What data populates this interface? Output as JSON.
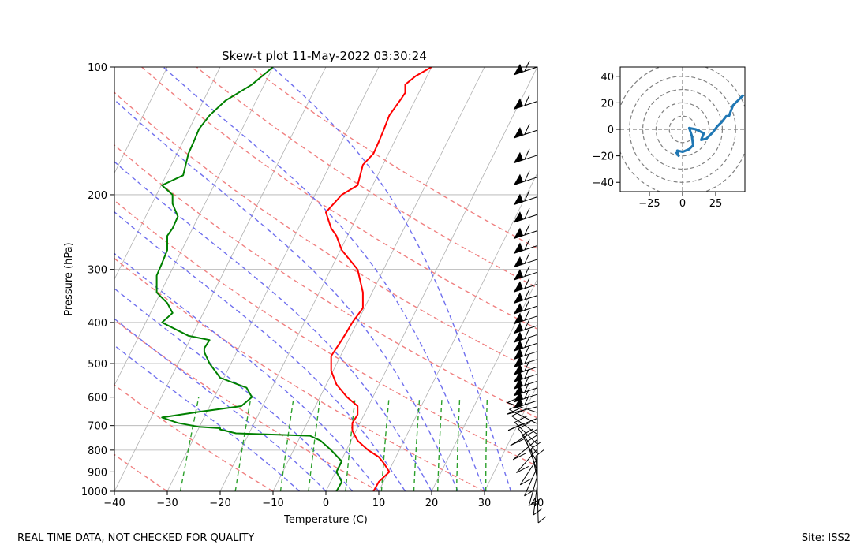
{
  "chart_data": [
    {
      "type": "skew-t",
      "title": "Skew-t plot 11-May-2022 03:30:24",
      "xlabel": "Temperature (C)",
      "ylabel": "Pressure (hPa)",
      "xlim": [
        -40,
        40
      ],
      "ylim": [
        1000,
        100
      ],
      "log_y": true,
      "grid": true,
      "x_ticks": [
        "−40",
        "−30",
        "−20",
        "−10",
        "0",
        "10",
        "20",
        "30",
        "40"
      ],
      "x_tick_values": [
        -40,
        -30,
        -20,
        -10,
        0,
        10,
        20,
        30,
        40
      ],
      "y_ticks": [
        "100",
        "200",
        "300",
        "400",
        "500",
        "600",
        "700",
        "800",
        "900",
        "1000"
      ],
      "y_tick_values": [
        100,
        200,
        300,
        400,
        500,
        600,
        700,
        800,
        900,
        1000
      ],
      "colors": {
        "temperature": "#ff0000",
        "dewpoint": "#008000",
        "dry_adiabat": "#f08080",
        "moist_adiabat": "#7070ee",
        "mixing_ratio": "#2ca02c",
        "isotherm": "#b0b0b0",
        "wind_barbs": "#000000"
      },
      "series": [
        {
          "key": "temperature",
          "x_plot": [
            9,
            10,
            12,
            11,
            10,
            8,
            6,
            5,
            5,
            6,
            6,
            4,
            2,
            1,
            1,
            3,
            4,
            5,
            7,
            7,
            6,
            3,
            2,
            1,
            0,
            3,
            6,
            7,
            9,
            10,
            11,
            12,
            14,
            15,
            15,
            17,
            20
          ],
          "y": [
            1000,
            950,
            900,
            860,
            830,
            800,
            760,
            720,
            690,
            660,
            630,
            600,
            560,
            520,
            480,
            440,
            420,
            400,
            370,
            340,
            300,
            270,
            250,
            240,
            220,
            200,
            190,
            170,
            160,
            150,
            140,
            130,
            120,
            115,
            110,
            105,
            100
          ]
        },
        {
          "key": "dewpoint",
          "x_plot": [
            2,
            3,
            2,
            3,
            1,
            -1,
            -3,
            -17,
            -20,
            -20,
            -24,
            -28,
            -31,
            -24,
            -16,
            -14,
            -15,
            -20,
            -22,
            -23,
            -23,
            -22,
            -26,
            -31,
            -29,
            -30,
            -32,
            -32,
            -31,
            -30,
            -30,
            -29,
            -28,
            -29,
            -29,
            -31,
            -27,
            -26,
            -25,
            -24,
            -22,
            -19,
            -14,
            -10
          ],
          "y": [
            1000,
            950,
            900,
            850,
            800,
            760,
            740,
            730,
            715,
            710,
            705,
            690,
            670,
            650,
            630,
            600,
            570,
            540,
            500,
            470,
            460,
            440,
            430,
            400,
            380,
            360,
            340,
            310,
            290,
            270,
            250,
            240,
            225,
            210,
            200,
            190,
            180,
            160,
            150,
            140,
            130,
            120,
            110,
            100
          ]
        }
      ],
      "wind_barb_count": 45
    },
    {
      "type": "hodograph",
      "xlim": [
        -47,
        47
      ],
      "ylim": [
        -47,
        47
      ],
      "x_ticks": [
        "−25",
        "0",
        "25"
      ],
      "x_tick_values": [
        -25,
        0,
        25
      ],
      "y_ticks": [
        "40",
        "20",
        "0",
        "−20",
        "−40"
      ],
      "y_tick_values": [
        40,
        20,
        0,
        -20,
        -40
      ],
      "rings": [
        10,
        20,
        30,
        40,
        50
      ],
      "color": "#1f77b4",
      "series": [
        {
          "x": [
            -5,
            -3,
            -4,
            0,
            5,
            8,
            7,
            5,
            10,
            16,
            14,
            18,
            23,
            26,
            30,
            33,
            35,
            38,
            42,
            46
          ],
          "y": [
            -17,
            -20,
            -16,
            -17,
            -15,
            -12,
            -5,
            1,
            0,
            -3,
            -8,
            -7,
            -2,
            2,
            6,
            10,
            10,
            18,
            22,
            26
          ]
        }
      ]
    }
  ],
  "footer": {
    "left": "REAL TIME DATA, NOT CHECKED FOR QUALITY",
    "right": "Site: ISS2"
  }
}
